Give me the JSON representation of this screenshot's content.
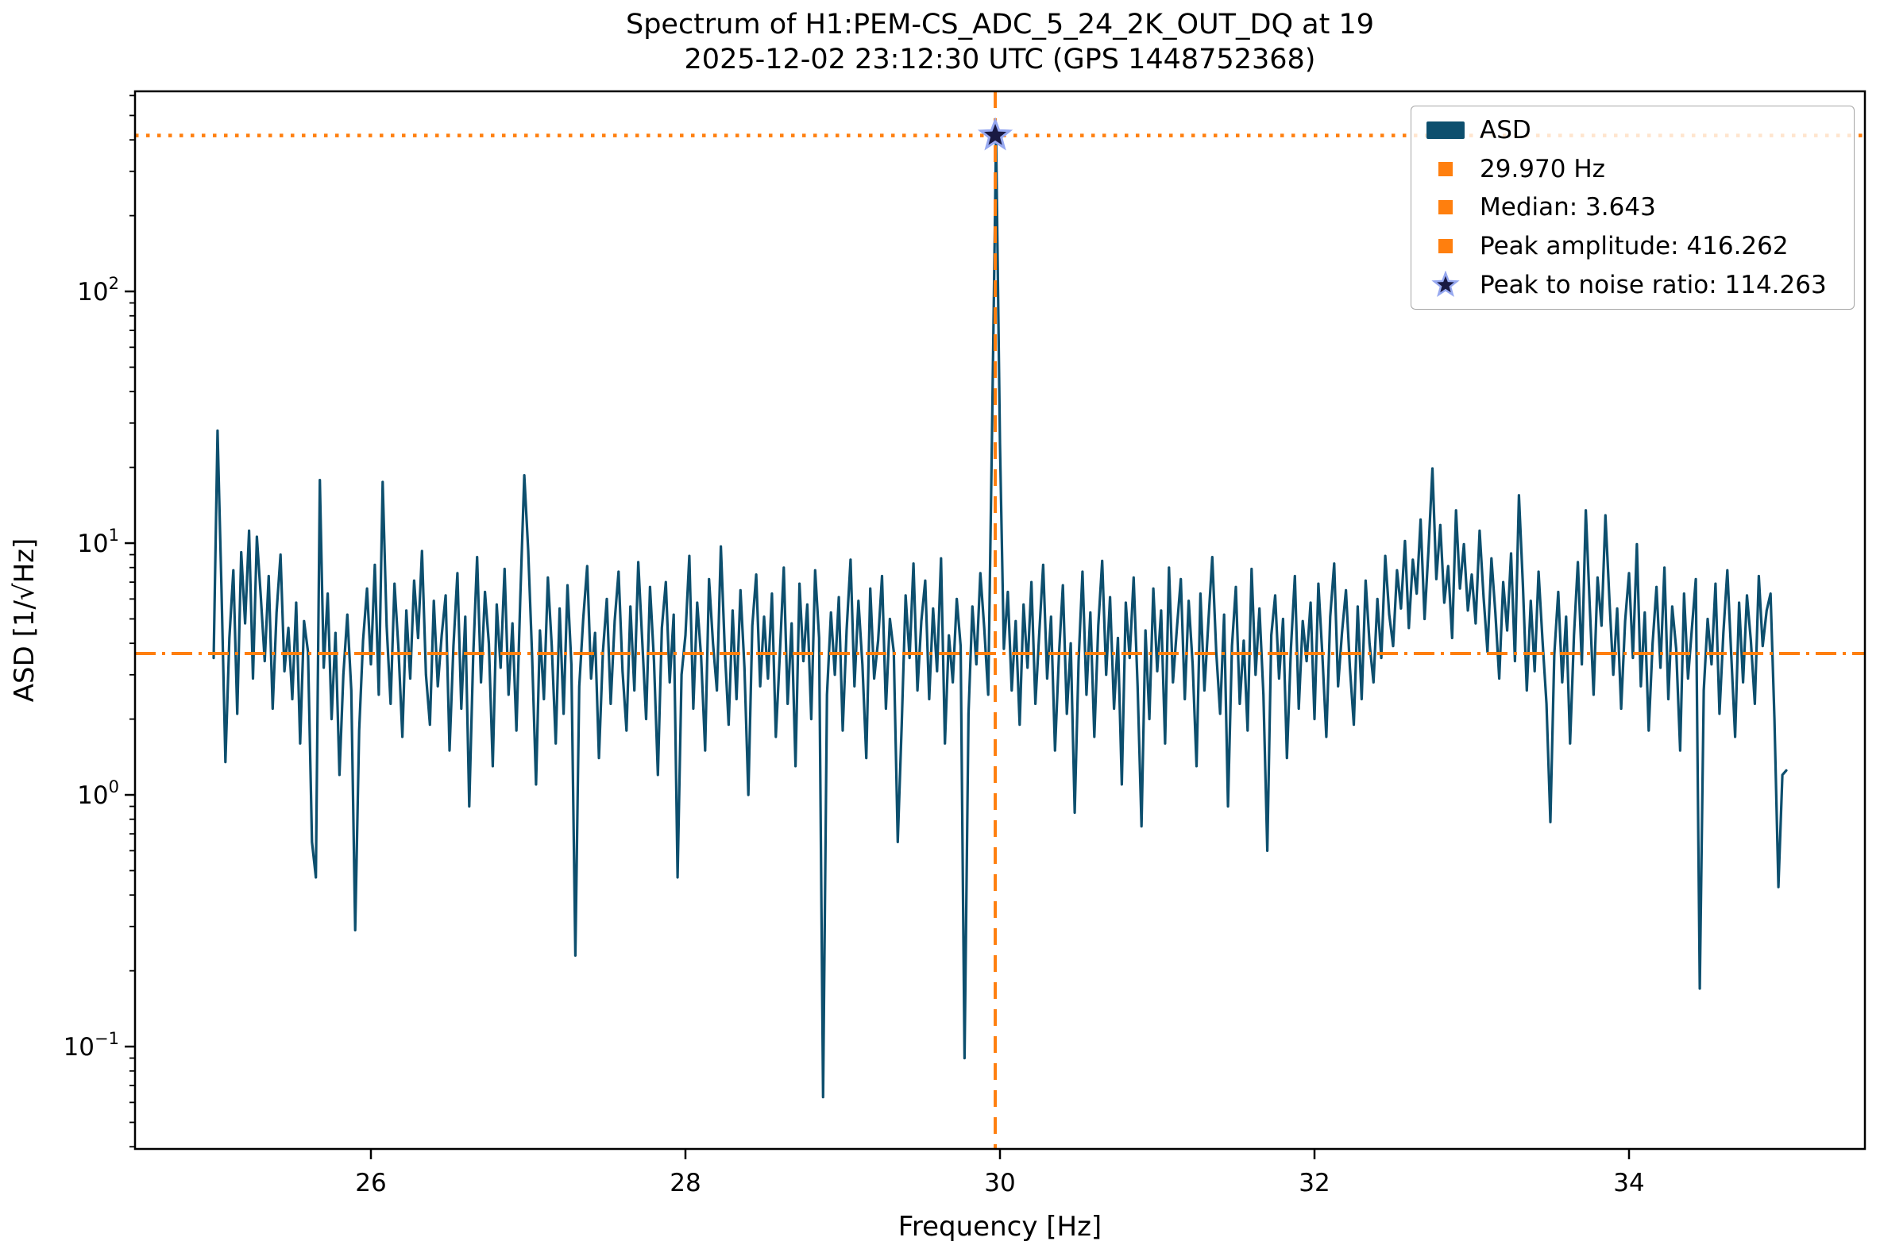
{
  "figure": {
    "title_line1": "Spectrum of H1:PEM-CS_ADC_5_24_2K_OUT_DQ at 19",
    "title_line2": "2025-12-02 23:12:30 UTC (GPS 1448752368)",
    "xlabel": "Frequency [Hz]",
    "ylabel": "ASD [1/√Hz]"
  },
  "legend": {
    "items": [
      {
        "label": "ASD",
        "marker": "patch"
      },
      {
        "label": "29.970 Hz",
        "marker": "square"
      },
      {
        "label": "Median: 3.643",
        "marker": "square"
      },
      {
        "label": "Peak amplitude: 416.262",
        "marker": "square"
      },
      {
        "label": "Peak to noise ratio: 114.263",
        "marker": "star"
      }
    ]
  },
  "colors": {
    "line": "#0d4f6e",
    "accent": "#ff7f0e",
    "star_fill": "#191942",
    "star_edge": "#96a8f0",
    "spine": "#000000"
  },
  "chart_data": {
    "type": "line",
    "title": "Spectrum of H1:PEM-CS_ADC_5_24_2K_OUT_DQ at 19 2025-12-02 23:12:30 UTC (GPS 1448752368)",
    "xlabel": "Frequency [Hz]",
    "ylabel": "ASD [1/√Hz]",
    "xscale": "linear",
    "yscale": "log",
    "xlim": [
      24.5,
      35.5
    ],
    "ylim": [
      0.0392,
      623.7
    ],
    "xticks": [
      26,
      28,
      30,
      32,
      34
    ],
    "ytick_exponents": [
      -1,
      0,
      1,
      2
    ],
    "grid": false,
    "legend_position": "upper right",
    "annotations": {
      "peak_frequency_hz": 29.97,
      "median": 3.643,
      "peak_amplitude": 416.262,
      "peak_to_noise_ratio": 114.263,
      "peak_line_style": "dashed",
      "median_line_style": "dashdot",
      "peak_amplitude_line_style": "dotted"
    },
    "x_start": 25.0,
    "x_step": 0.025,
    "series": [
      {
        "name": "ASD",
        "values": [
          3.5,
          28.0,
          6.5,
          1.35,
          4.2,
          7.8,
          2.1,
          9.2,
          4.8,
          11.2,
          2.9,
          10.6,
          6.1,
          3.4,
          7.4,
          2.2,
          5.3,
          9.0,
          3.1,
          4.6,
          2.4,
          5.8,
          1.6,
          4.9,
          3.7,
          0.65,
          0.47,
          17.8,
          3.2,
          6.3,
          2.0,
          4.4,
          1.2,
          3.0,
          5.2,
          2.6,
          0.29,
          1.8,
          4.1,
          6.6,
          3.3,
          8.2,
          2.5,
          17.5,
          4.7,
          2.3,
          6.9,
          3.8,
          1.7,
          5.4,
          2.9,
          7.1,
          4.2,
          9.3,
          3.0,
          1.9,
          5.9,
          2.7,
          4.3,
          6.2,
          1.5,
          3.9,
          7.6,
          2.2,
          5.1,
          0.9,
          3.5,
          8.8,
          2.8,
          6.4,
          4.0,
          1.3,
          5.7,
          3.2,
          7.9,
          2.5,
          4.8,
          1.8,
          6.1,
          18.6,
          9.4,
          3.6,
          1.1,
          4.5,
          2.4,
          7.3,
          3.9,
          1.6,
          5.5,
          2.1,
          6.8,
          3.3,
          0.23,
          2.7,
          5.0,
          8.1,
          2.9,
          4.4,
          1.4,
          3.7,
          6.0,
          2.3,
          4.9,
          7.7,
          3.1,
          1.8,
          5.6,
          2.6,
          8.4,
          4.1,
          2.0,
          6.7,
          3.4,
          1.2,
          4.6,
          7.0,
          2.8,
          5.2,
          0.47,
          3.0,
          4.3,
          8.9,
          2.2,
          5.8,
          3.5,
          1.5,
          7.2,
          4.0,
          2.6,
          9.7,
          3.8,
          1.9,
          5.4,
          2.4,
          6.5,
          3.2,
          1.0,
          4.7,
          7.5,
          2.7,
          5.1,
          2.9,
          6.3,
          1.7,
          3.6,
          8.0,
          2.3,
          4.8,
          1.3,
          6.9,
          3.4,
          5.7,
          2.0,
          7.8,
          4.2,
          0.063,
          2.5,
          5.3,
          3.0,
          6.1,
          1.8,
          4.5,
          8.6,
          2.7,
          5.9,
          3.3,
          1.4,
          6.6,
          2.9,
          4.1,
          7.4,
          2.2,
          5.0,
          3.7,
          0.65,
          1.9,
          6.2,
          3.5,
          8.3,
          2.6,
          4.9,
          7.1,
          2.4,
          5.5,
          3.1,
          8.7,
          1.6,
          4.3,
          2.8,
          6.0,
          3.9,
          0.09,
          2.1,
          5.6,
          3.3,
          7.6,
          4.6,
          2.5,
          29.0,
          416.262,
          25.0,
          3.8,
          6.4,
          2.6,
          4.9,
          1.9,
          5.7,
          3.2,
          7.0,
          2.3,
          4.4,
          8.2,
          2.9,
          5.1,
          1.5,
          3.6,
          6.8,
          2.1,
          4.0,
          0.85,
          3.4,
          7.7,
          2.5,
          5.3,
          1.7,
          4.7,
          8.5,
          3.0,
          6.1,
          2.2,
          4.2,
          1.1,
          5.8,
          3.5,
          7.3,
          2.7,
          0.75,
          4.5,
          2.0,
          6.6,
          3.1,
          5.4,
          1.6,
          8.0,
          2.8,
          4.6,
          7.2,
          2.4,
          5.9,
          3.3,
          1.3,
          6.3,
          2.6,
          4.8,
          8.8,
          3.7,
          2.1,
          5.2,
          0.9,
          3.9,
          6.7,
          2.3,
          4.1,
          1.8,
          7.9,
          3.0,
          5.5,
          2.5,
          0.6,
          4.3,
          6.2,
          2.9,
          5.0,
          1.4,
          3.8,
          7.4,
          2.2,
          4.9,
          3.4,
          5.8,
          2.0,
          6.9,
          3.6,
          1.7,
          5.1,
          8.3,
          2.7,
          4.4,
          6.5,
          3.2,
          1.9,
          5.6,
          2.4,
          7.1,
          4.0,
          2.8,
          6.0,
          3.5,
          8.9,
          5.2,
          3.9,
          7.8,
          5.5,
          10.2,
          4.6,
          8.6,
          6.3,
          12.4,
          5.0,
          9.5,
          19.8,
          7.2,
          11.8,
          5.8,
          8.1,
          4.2,
          13.5,
          6.6,
          9.9,
          5.4,
          7.5,
          4.8,
          11.2,
          6.1,
          3.7,
          8.7,
          5.3,
          2.9,
          7.0,
          4.5,
          9.1,
          3.4,
          15.5,
          6.8,
          2.6,
          5.9,
          3.1,
          7.7,
          4.1,
          2.3,
          0.78,
          3.6,
          6.4,
          2.8,
          5.1,
          1.6,
          4.3,
          8.4,
          3.3,
          13.5,
          5.7,
          2.5,
          7.3,
          4.7,
          12.9,
          6.0,
          3.0,
          5.5,
          2.2,
          4.9,
          7.6,
          3.5,
          9.9,
          2.7,
          5.3,
          1.8,
          4.0,
          6.7,
          3.2,
          8.0,
          2.4,
          5.6,
          3.8,
          1.5,
          6.3,
          2.9,
          4.6,
          7.2,
          0.17,
          2.6,
          5.0,
          3.3,
          6.9,
          2.1,
          4.4,
          7.8,
          3.6,
          1.7,
          5.8,
          2.8,
          6.2,
          4.1,
          2.3,
          7.4,
          3.9,
          5.4,
          6.3,
          2.0,
          0.43,
          1.2,
          1.25
        ]
      }
    ]
  }
}
